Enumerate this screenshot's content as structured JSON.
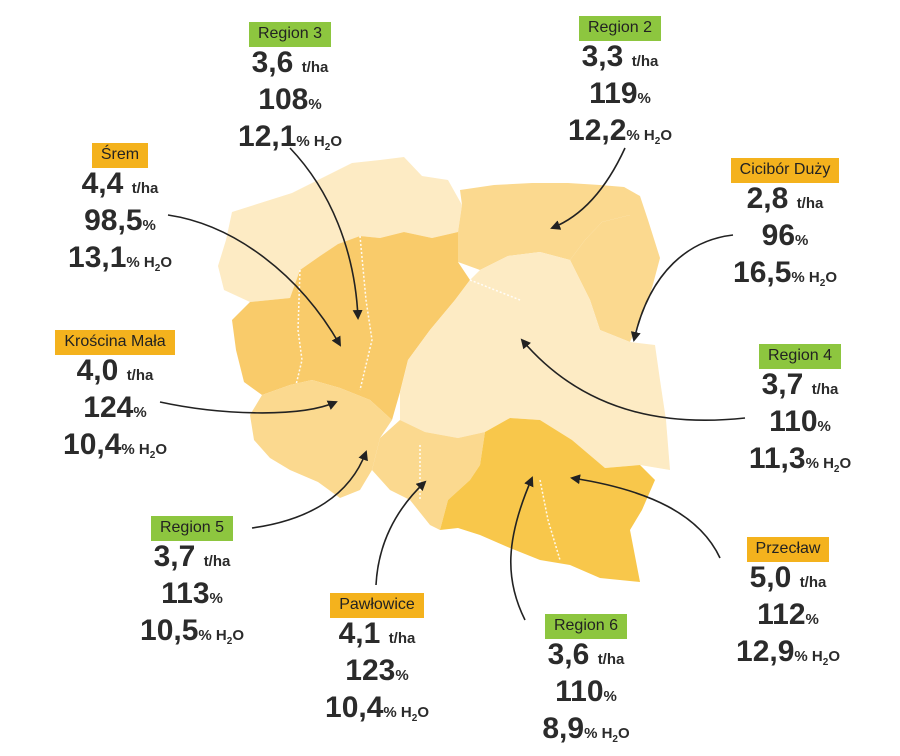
{
  "colors": {
    "tag_orange": "#f4b21d",
    "tag_green": "#8dc63f",
    "shade_1": "#fdebc4",
    "shade_2": "#fbd98f",
    "shade_3": "#f9cb6a",
    "shade_4": "#f8c74b",
    "arrow": "#222222"
  },
  "units": {
    "yield": "t/ha",
    "percent": "%",
    "moisture": "% H",
    "h2o_sub": "2",
    "h2o_o": "O"
  },
  "callouts": [
    {
      "name": "Region 3",
      "tag": "green",
      "yield": "3,6",
      "pct": "108",
      "moisture": "12,1"
    },
    {
      "name": "Region 2",
      "tag": "green",
      "yield": "3,3",
      "pct": "119",
      "moisture": "12,2"
    },
    {
      "name": "Śrem",
      "tag": "orange",
      "yield": "4,4",
      "pct": "98,5",
      "moisture": "13,1"
    },
    {
      "name": "Cicibór Duży",
      "tag": "orange",
      "yield": "2,8",
      "pct": "96",
      "moisture": "16,5"
    },
    {
      "name": "Krościna Mała",
      "tag": "orange",
      "yield": "4,0",
      "pct": "124",
      "moisture": "10,4"
    },
    {
      "name": "Region 4",
      "tag": "green",
      "yield": "3,7",
      "pct": "110",
      "moisture": "11,3"
    },
    {
      "name": "Region 5",
      "tag": "green",
      "yield": "3,7",
      "pct": "113",
      "moisture": "10,5"
    },
    {
      "name": "Przecław",
      "tag": "orange",
      "yield": "5,0",
      "pct": "112",
      "moisture": "12,9"
    },
    {
      "name": "Pawłowice",
      "tag": "orange",
      "yield": "4,1",
      "pct": "123",
      "moisture": "10,4"
    },
    {
      "name": "Region 6",
      "tag": "green",
      "yield": "3,6",
      "pct": "110",
      "moisture": "8,9"
    }
  ]
}
